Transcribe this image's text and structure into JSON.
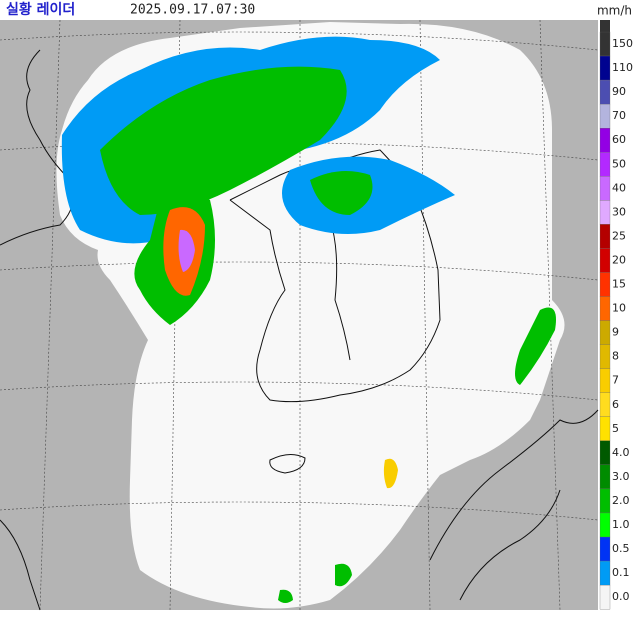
{
  "header": {
    "title": "실황 레이더",
    "time": "2025.09.17.07:30"
  },
  "legend": {
    "unit": "mm/h",
    "items": [
      {
        "label": "150",
        "color": "#333333"
      },
      {
        "label": "110",
        "color": "#000390"
      },
      {
        "label": "90",
        "color": "#4c4eb1"
      },
      {
        "label": "70",
        "color": "#b3b4de"
      },
      {
        "label": "60",
        "color": "#9300e4"
      },
      {
        "label": "50",
        "color": "#b329ff"
      },
      {
        "label": "40",
        "color": "#c969ff"
      },
      {
        "label": "30",
        "color": "#e0a9ff"
      },
      {
        "label": "25",
        "color": "#b40000"
      },
      {
        "label": "20",
        "color": "#d20000"
      },
      {
        "label": "15",
        "color": "#ff3200"
      },
      {
        "label": "10",
        "color": "#ff6600"
      },
      {
        "label": "9",
        "color": "#ccaa00"
      },
      {
        "label": "8",
        "color": "#e0b900"
      },
      {
        "label": "7",
        "color": "#f9cd00"
      },
      {
        "label": "6",
        "color": "#ffdc1f"
      },
      {
        "label": "5",
        "color": "#ffe100"
      },
      {
        "label": "4.0",
        "color": "#005a00"
      },
      {
        "label": "3.0",
        "color": "#008c00"
      },
      {
        "label": "2.0",
        "color": "#00be00"
      },
      {
        "label": "1.0",
        "color": "#00ff00"
      },
      {
        "label": "0.5",
        "color": "#0033f5"
      },
      {
        "label": "0.1",
        "color": "#009bf5"
      },
      {
        "label": "0.0",
        "color": "#f5f5f5"
      }
    ]
  }
}
